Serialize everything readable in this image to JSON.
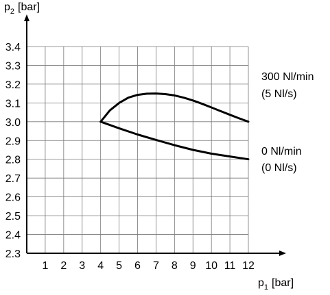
{
  "chart_data": {
    "type": "line",
    "xlabel_main": "p",
    "xlabel_sub": "1",
    "xlabel_unit": "[bar]",
    "ylabel_main": "p",
    "ylabel_sub": "2",
    "ylabel_unit": "[bar]",
    "xlim": [
      0,
      12
    ],
    "ylim": [
      2.3,
      3.4
    ],
    "x_ticks": [
      "1",
      "2",
      "3",
      "4",
      "5",
      "6",
      "7",
      "8",
      "9",
      "10",
      "11",
      "12"
    ],
    "y_ticks": [
      "2.3",
      "2.4",
      "2.5",
      "2.6",
      "2.7",
      "2.8",
      "2.9",
      "3.0",
      "3.1",
      "3.2",
      "3.3",
      "3.4"
    ],
    "grid": true,
    "series": [
      {
        "name_line1": "300 Nl/min",
        "name_line2": "(5 Nl/s)",
        "x": [
          4,
          4.5,
          5,
          5.5,
          6,
          6.5,
          7,
          7.5,
          8,
          8.5,
          9,
          9.5,
          10,
          10.5,
          11,
          11.5,
          12
        ],
        "y": [
          3.0,
          3.06,
          3.1,
          3.128,
          3.143,
          3.149,
          3.15,
          3.147,
          3.14,
          3.128,
          3.113,
          3.095,
          3.076,
          3.056,
          3.037,
          3.018,
          3.0
        ]
      },
      {
        "name_line1": "0 Nl/min",
        "name_line2": "(0 Nl/s)",
        "x": [
          4,
          5,
          6,
          7,
          8,
          9,
          10,
          11,
          12
        ],
        "y": [
          3.0,
          2.965,
          2.932,
          2.903,
          2.875,
          2.85,
          2.83,
          2.815,
          2.8
        ]
      }
    ]
  }
}
